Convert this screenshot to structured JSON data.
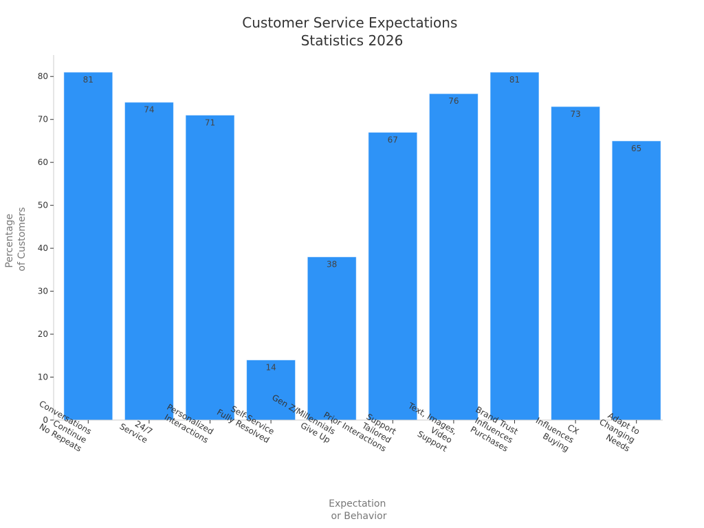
{
  "chart_data": {
    "type": "bar",
    "title": [
      "Customer Service Expectations",
      "Statistics 2026"
    ],
    "xlabel": [
      "Expectation",
      "or Behavior"
    ],
    "ylabel": [
      "Percentage",
      "of Customers"
    ],
    "ylim": [
      0,
      85
    ],
    "yticks": [
      0,
      10,
      20,
      30,
      40,
      50,
      60,
      70,
      80
    ],
    "bar_color": "#2e93f7",
    "categories": [
      [
        "Conversations",
        "Continue",
        "No Repeats"
      ],
      [
        "24/7",
        "Service"
      ],
      [
        "Personalized",
        "Interactions"
      ],
      [
        "Self-Service",
        "Fully Resolved"
      ],
      [
        "Gen Z/Millennials",
        "Give Up"
      ],
      [
        "Support",
        "Tailored",
        "Prior Interactions"
      ],
      [
        "Text, Images,",
        "Video",
        "Support"
      ],
      [
        "Brand Trust",
        "Influences",
        "Purchases"
      ],
      [
        "CX",
        "Influences",
        "Buying"
      ],
      [
        "Adapt to",
        "Changing",
        "Needs"
      ]
    ],
    "values": [
      81,
      74,
      71,
      14,
      38,
      67,
      76,
      81,
      73,
      65
    ]
  }
}
